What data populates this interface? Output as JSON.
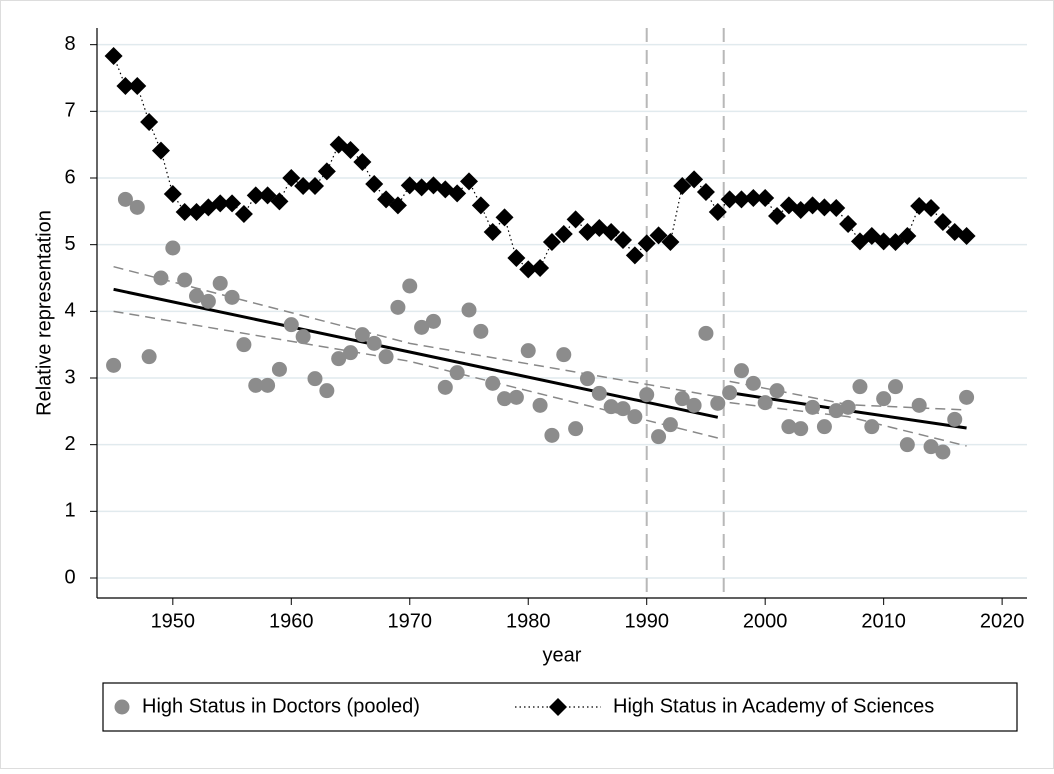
{
  "chart_data": {
    "type": "scatter",
    "xlabel": "year",
    "ylabel": "Relative representation",
    "xlim": [
      1943.6,
      2022.1
    ],
    "ylim": [
      -0.3,
      8.25
    ],
    "xticks": [
      1950,
      1960,
      1970,
      1980,
      1990,
      2000,
      2010,
      2020
    ],
    "yticks": [
      0,
      1,
      2,
      3,
      4,
      5,
      6,
      7,
      8
    ],
    "grid": true,
    "vlines": [
      1990,
      1996.5
    ],
    "x": [
      1945,
      1946,
      1947,
      1948,
      1949,
      1950,
      1951,
      1952,
      1953,
      1954,
      1955,
      1956,
      1957,
      1958,
      1959,
      1960,
      1961,
      1962,
      1963,
      1964,
      1965,
      1966,
      1967,
      1968,
      1969,
      1970,
      1971,
      1972,
      1973,
      1974,
      1975,
      1976,
      1977,
      1978,
      1979,
      1980,
      1981,
      1982,
      1983,
      1984,
      1985,
      1986,
      1987,
      1988,
      1989,
      1990,
      1991,
      1992,
      1993,
      1994,
      1995,
      1996,
      1997,
      1998,
      1999,
      2000,
      2001,
      2002,
      2003,
      2004,
      2005,
      2006,
      2007,
      2008,
      2009,
      2010,
      2011,
      2012,
      2013,
      2014,
      2015,
      2016,
      2017
    ],
    "series": [
      {
        "name": "High Status in Doctors (pooled)",
        "color": "#8c8c8c",
        "marker": "circle",
        "line": null,
        "values": [
          3.19,
          5.68,
          5.56,
          3.32,
          4.5,
          4.95,
          4.47,
          4.23,
          4.15,
          4.42,
          4.21,
          3.5,
          2.89,
          2.89,
          3.13,
          3.8,
          3.62,
          2.99,
          2.81,
          3.29,
          3.38,
          3.65,
          3.52,
          3.32,
          4.06,
          4.38,
          3.76,
          3.85,
          2.86,
          3.08,
          4.02,
          3.7,
          2.92,
          2.69,
          2.71,
          3.41,
          2.59,
          2.14,
          3.35,
          2.24,
          2.99,
          2.77,
          2.57,
          2.54,
          2.42,
          2.75,
          2.12,
          2.3,
          2.69,
          2.59,
          3.67,
          2.62,
          2.78,
          3.11,
          2.92,
          2.63,
          2.81,
          2.27,
          2.24,
          2.56,
          2.27,
          2.51,
          2.56,
          2.87,
          2.27,
          2.69,
          2.87,
          2.0,
          2.59,
          1.97,
          1.89,
          2.38,
          2.71
        ]
      },
      {
        "name": "High Status in Academy of Sciences",
        "color": "#000000",
        "marker": "diamond",
        "line": "dotted",
        "values": [
          7.83,
          7.38,
          7.38,
          6.84,
          6.41,
          5.76,
          5.49,
          5.49,
          5.56,
          5.62,
          5.62,
          5.46,
          5.74,
          5.74,
          5.65,
          6.0,
          5.88,
          5.88,
          6.1,
          6.5,
          6.42,
          6.24,
          5.91,
          5.68,
          5.59,
          5.89,
          5.86,
          5.89,
          5.83,
          5.77,
          5.95,
          5.59,
          5.19,
          5.41,
          4.8,
          4.63,
          4.65,
          5.04,
          5.16,
          5.38,
          5.19,
          5.25,
          5.19,
          5.07,
          4.84,
          5.02,
          5.14,
          5.04,
          5.88,
          5.98,
          5.79,
          5.49,
          5.68,
          5.68,
          5.7,
          5.7,
          5.43,
          5.59,
          5.52,
          5.59,
          5.56,
          5.55,
          5.31,
          5.05,
          5.13,
          5.05,
          5.04,
          5.13,
          5.58,
          5.55,
          5.34,
          5.19,
          5.13
        ]
      }
    ],
    "fit_lines": [
      {
        "x": [
          1945,
          1970,
          1996
        ],
        "values": [
          4.33,
          3.39,
          2.41
        ],
        "upper": [
          4.67,
          3.52,
          2.72
        ],
        "lower": [
          4.0,
          3.25,
          2.1
        ]
      },
      {
        "x": [
          1997,
          2007,
          2017
        ],
        "values": [
          2.78,
          2.51,
          2.25
        ],
        "upper": [
          2.95,
          2.6,
          2.52
        ],
        "lower": [
          2.63,
          2.42,
          1.98
        ]
      }
    ]
  }
}
